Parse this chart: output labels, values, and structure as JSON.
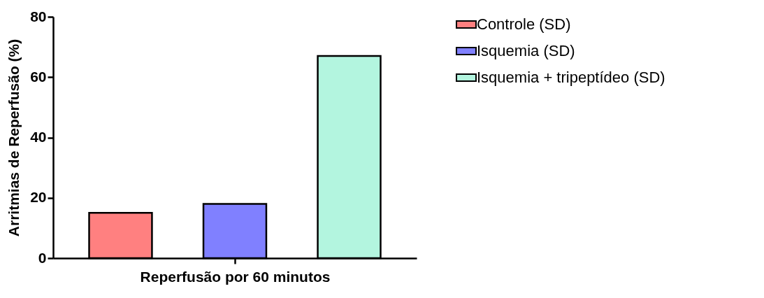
{
  "chart_data": {
    "type": "bar",
    "categories": [
      null
    ],
    "xlabel": "Reperfusão por 60 minutos",
    "ylabel": "Arritmias de Reperfusão (%)",
    "series": [
      {
        "name": "Controle (SD)",
        "color": "#ff8080",
        "values": [
          15
        ]
      },
      {
        "name": "Isquemia (SD)",
        "color": "#8080ff",
        "values": [
          18
        ]
      },
      {
        "name": "Isquemia + tripeptídeo (SD)",
        "color": "#b3f5df",
        "values": [
          67
        ]
      }
    ],
    "ylim": [
      0,
      80
    ],
    "yticks": [
      0,
      20,
      40,
      60,
      80
    ],
    "grid": false,
    "legend": "top right"
  }
}
